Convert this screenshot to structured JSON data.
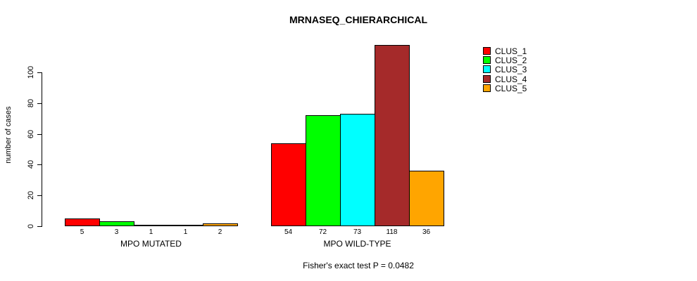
{
  "chart_data": {
    "type": "bar",
    "title": "MRNASEQ_CHIERARCHICAL",
    "xlabel": "",
    "ylabel": "number of cases",
    "ylim": [
      0,
      120
    ],
    "yticks": [
      0,
      20,
      40,
      60,
      80,
      100
    ],
    "grid": false,
    "legend_position": "top-right",
    "categories": [
      "MPO MUTATED",
      "MPO WILD-TYPE"
    ],
    "series": [
      {
        "name": "CLUS_1",
        "color": "#FF0000",
        "values": [
          5,
          54
        ]
      },
      {
        "name": "CLUS_2",
        "color": "#00FF00",
        "values": [
          3,
          72
        ]
      },
      {
        "name": "CLUS_3",
        "color": "#00FFFF",
        "values": [
          1,
          73
        ]
      },
      {
        "name": "CLUS_4",
        "color": "#A52A2A",
        "values": [
          1,
          118
        ]
      },
      {
        "name": "CLUS_5",
        "color": "#FFA500",
        "values": [
          2,
          36
        ]
      }
    ],
    "bar_value_labels": [
      [
        "5",
        "3",
        "1",
        "1",
        "2"
      ],
      [
        "54",
        "72",
        "73",
        "118",
        "36"
      ]
    ],
    "annotation": "Fisher's exact test P = 0.0482"
  },
  "legend": {
    "items": [
      {
        "label": "CLUS_1",
        "color": "#FF0000"
      },
      {
        "label": "CLUS_2",
        "color": "#00FF00"
      },
      {
        "label": "CLUS_3",
        "color": "#00FFFF"
      },
      {
        "label": "CLUS_4",
        "color": "#A52A2A"
      },
      {
        "label": "CLUS_5",
        "color": "#FFA500"
      }
    ]
  }
}
